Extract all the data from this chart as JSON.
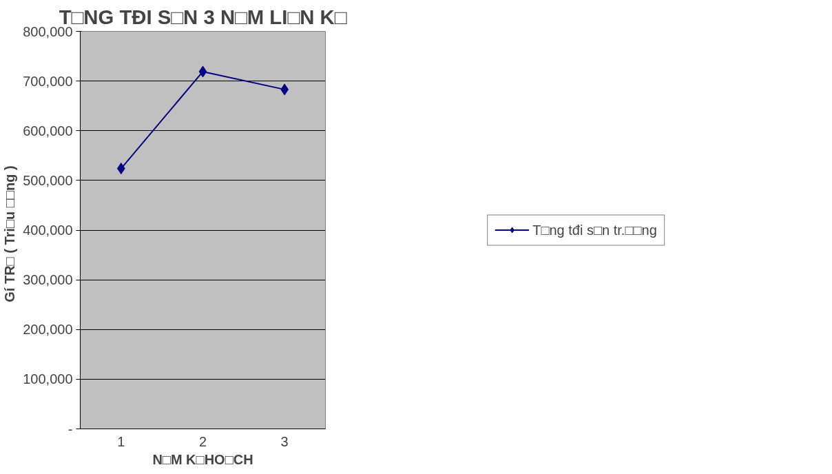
{
  "chart_data": {
    "type": "line",
    "title": "T□NG TĐI S□N 3 N□M LI□N K□",
    "xlabel": "N□M K□HO□CH",
    "ylabel": "Gí   TR□ ( Tri□u □□ng )",
    "categories": [
      "1",
      "2",
      "3"
    ],
    "series": [
      {
        "name": "T□ng tđi s□n tr.□□ng",
        "color": "#000080",
        "values": [
          524000,
          719000,
          683000
        ]
      }
    ],
    "ylim": [
      0,
      800000
    ],
    "yticks": [
      {
        "value": 0,
        "label": "-"
      },
      {
        "value": 100000,
        "label": "100,000"
      },
      {
        "value": 200000,
        "label": "200,000"
      },
      {
        "value": 300000,
        "label": "300,000"
      },
      {
        "value": 400000,
        "label": "400,000"
      },
      {
        "value": 500000,
        "label": "500,000"
      },
      {
        "value": 600000,
        "label": "600,000"
      },
      {
        "value": 700000,
        "label": "700,000"
      },
      {
        "value": 800000,
        "label": "800,000"
      }
    ],
    "grid": "y",
    "legend": "right",
    "marker": "diamond",
    "line_style": "solid"
  }
}
